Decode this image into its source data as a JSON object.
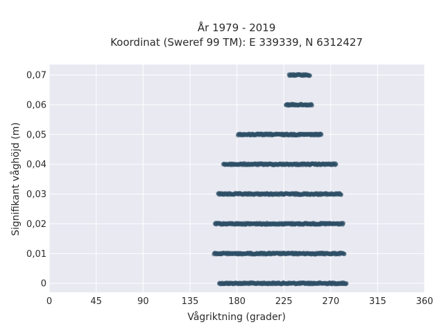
{
  "chart_data": {
    "type": "scatter",
    "title_lines": [
      "År 1979 - 2019",
      "Koordinat (Sweref 99 TM): E 339339, N 6312427"
    ],
    "xlabel": "Vågriktning (grader)",
    "ylabel": "Signifikant våghöjd (m)",
    "xlim": [
      0,
      360
    ],
    "ylim": [
      -0.003,
      0.0735
    ],
    "x_ticks": [
      0,
      45,
      90,
      135,
      180,
      225,
      270,
      315,
      360
    ],
    "x_tick_labels": [
      "0",
      "45",
      "90",
      "135",
      "180",
      "225",
      "270",
      "315",
      "360"
    ],
    "y_ticks": [
      0,
      0.01,
      0.02,
      0.03,
      0.04,
      0.05,
      0.06,
      0.07
    ],
    "y_tick_labels": [
      "0",
      "0,01",
      "0,02",
      "0,03",
      "0,04",
      "0,05",
      "0,06",
      "0,07"
    ],
    "grid": true,
    "background_color": "#e8e9f1",
    "marker_color": "#2f5067",
    "series": [
      {
        "bands": [
          {
            "y": 0.0,
            "x_from": 163,
            "x_to": 285
          },
          {
            "y": 0.01,
            "x_from": 158,
            "x_to": 283
          },
          {
            "y": 0.02,
            "x_from": 159,
            "x_to": 282
          },
          {
            "y": 0.03,
            "x_from": 162,
            "x_to": 280
          },
          {
            "y": 0.04,
            "x_from": 167,
            "x_to": 275
          },
          {
            "y": 0.05,
            "x_from": 181,
            "x_to": 261
          },
          {
            "y": 0.06,
            "x_from": 227,
            "x_to": 252
          },
          {
            "y": 0.07,
            "x_from": 230,
            "x_to": 250
          }
        ]
      }
    ]
  }
}
